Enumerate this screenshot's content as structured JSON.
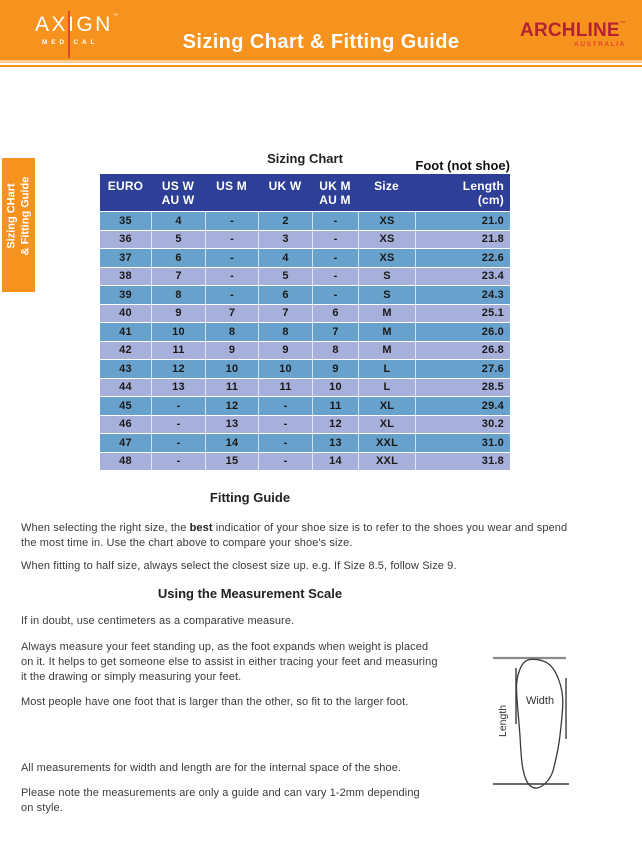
{
  "banner": {
    "axign_logo": {
      "name": "AXIGN",
      "tm": "™",
      "sub": "MEDICAL"
    },
    "title": "Sizing Chart & Fitting Guide",
    "archline_logo": {
      "name": "ARCHLINE",
      "tm": "™",
      "sub": "AUSTRALIA"
    }
  },
  "side_tab": {
    "line1": "Sizing CHart",
    "line2": "& Fitting Guide"
  },
  "sizing_chart": {
    "title": "Sizing Chart",
    "foot_note": "Foot (not shoe)",
    "columns": [
      {
        "label": "EURO",
        "sub": ""
      },
      {
        "label": "US W",
        "sub": "AU W"
      },
      {
        "label": "US M",
        "sub": ""
      },
      {
        "label": "UK W",
        "sub": ""
      },
      {
        "label": "UK M",
        "sub": "AU M"
      },
      {
        "label": "Size",
        "sub": ""
      },
      {
        "label": "Length",
        "sub": "(cm)"
      }
    ],
    "rows": [
      [
        "35",
        "4",
        "-",
        "2",
        "-",
        "XS",
        "21.0"
      ],
      [
        "36",
        "5",
        "-",
        "3",
        "-",
        "XS",
        "21.8"
      ],
      [
        "37",
        "6",
        "-",
        "4",
        "-",
        "XS",
        "22.6"
      ],
      [
        "38",
        "7",
        "-",
        "5",
        "-",
        "S",
        "23.4"
      ],
      [
        "39",
        "8",
        "-",
        "6",
        "-",
        "S",
        "24.3"
      ],
      [
        "40",
        "9",
        "7",
        "7",
        "6",
        "M",
        "25.1"
      ],
      [
        "41",
        "10",
        "8",
        "8",
        "7",
        "M",
        "26.0"
      ],
      [
        "42",
        "11",
        "9",
        "9",
        "8",
        "M",
        "26.8"
      ],
      [
        "43",
        "12",
        "10",
        "10",
        "9",
        "L",
        "27.6"
      ],
      [
        "44",
        "13",
        "11",
        "11",
        "10",
        "L",
        "28.5"
      ],
      [
        "45",
        "-",
        "12",
        "-",
        "11",
        "XL",
        "29.4"
      ],
      [
        "46",
        "-",
        "13",
        "-",
        "12",
        "XL",
        "30.2"
      ],
      [
        "47",
        "-",
        "14",
        "-",
        "13",
        "XXL",
        "31.0"
      ],
      [
        "48",
        "-",
        "15",
        "-",
        "14",
        "XXL",
        "31.8"
      ]
    ]
  },
  "fitting_guide": {
    "heading": "Fitting Guide",
    "p1_prefix": "When selecting the right size, the ",
    "p1_bold": "best",
    "p1_suffix": " indicatior of your shoe size is to refer to the shoes you wear and spend\nthe most time in. Use the chart above to compare your shoe's size.",
    "p2": "When fitting to half size, always select the closest size up. e.g. If Size 8.5, follow Size 9."
  },
  "measurement_scale": {
    "heading": "Using the Measurement Scale",
    "p1": "If in doubt, use centimeters as a comparative measure.",
    "p2": "Always measure your feet standing up, as the foot expands when weight is placed\non it. It helps to get someone else to assist in either tracing your feet and measuring\nit the drawing or simply measuring your feet.",
    "p3": "Most people have one foot that is larger than the other, so fit to the larger foot.",
    "p4": "All measurements for width and length are for the internal space of the shoe.",
    "p5": "Please note the measurements are only a guide and can vary 1-2mm depending\non style."
  },
  "diagram": {
    "width_label": "Width",
    "length_label": "Length"
  },
  "colors": {
    "brand_orange": "#F6921E",
    "header_navy": "#2E3F97",
    "row_blue": "#68A2CC",
    "row_periwinkle": "#A7AFDB",
    "brand_red": "#B52231",
    "accent_red": "#E0482E"
  }
}
